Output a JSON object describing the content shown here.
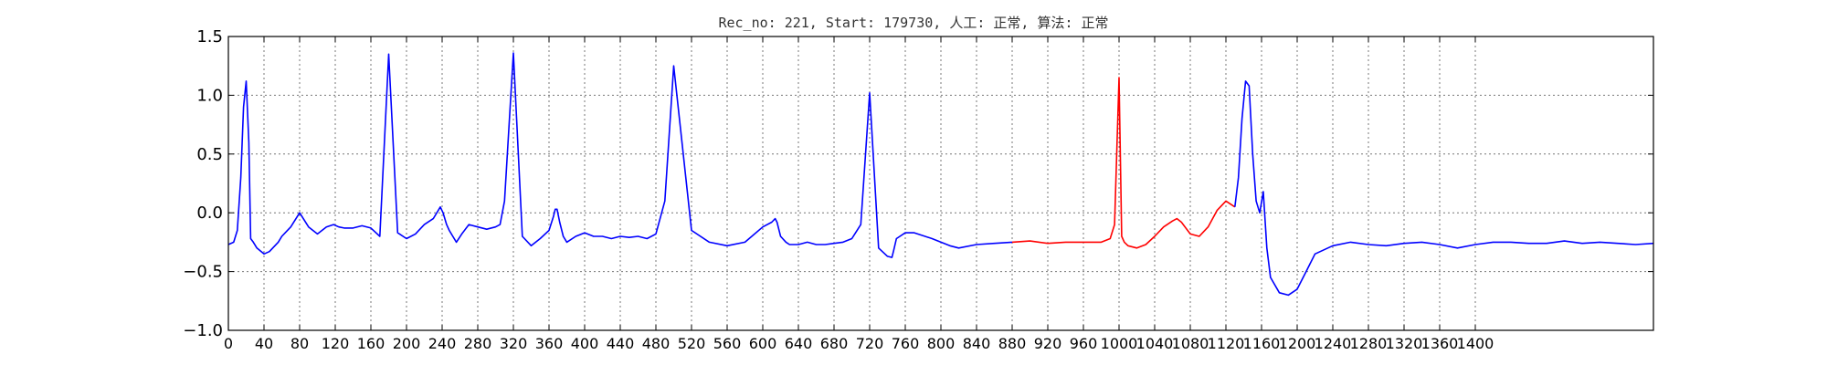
{
  "chart_data": {
    "type": "line",
    "title": "Rec_no: 221, Start: 179730, 人工: 正常, 算法: 正常",
    "xlabel": "",
    "ylabel": "",
    "xlim": [
      0,
      1600
    ],
    "ylim": [
      -1.0,
      1.5
    ],
    "grid": true,
    "x_ticks": [
      0,
      40,
      80,
      120,
      160,
      200,
      240,
      280,
      320,
      360,
      400,
      440,
      480,
      520,
      560,
      600,
      640,
      680,
      720,
      760,
      800,
      840,
      880,
      920,
      960,
      1000,
      1040,
      1080,
      1120,
      1160,
      1200,
      1240,
      1280,
      1320,
      1360,
      1400
    ],
    "x_tick_labels": [
      "0",
      "40",
      "80",
      "120",
      "160",
      "200",
      "240",
      "280",
      "320",
      "360",
      "400",
      "440",
      "480",
      "520",
      "560",
      "600",
      "640",
      "680",
      "720",
      "760",
      "800",
      "840",
      "880",
      "920",
      "960",
      "1000",
      "1040",
      "1080",
      "1120",
      "1160",
      "1200",
      "1240",
      "1280",
      "1320",
      "1360",
      "1400"
    ],
    "y_ticks": [
      -1.0,
      -0.5,
      0.0,
      0.5,
      1.0,
      1.5
    ],
    "y_tick_labels": [
      "−1.0",
      "−0.5",
      "0.0",
      "0.5",
      "1.0",
      "1.5"
    ],
    "series": [
      {
        "color": "#0000ff",
        "x": [
          0,
          6,
          10,
          14,
          17,
          20,
          23,
          25,
          28,
          32,
          40,
          46,
          56,
          60,
          70,
          80,
          90,
          100,
          110,
          118,
          124,
          130,
          140,
          150,
          160,
          170,
          180,
          190,
          200,
          210,
          220,
          230,
          238,
          241,
          245,
          248,
          252,
          256,
          262,
          270,
          280,
          290,
          300,
          305,
          310,
          320,
          330,
          340,
          350,
          360,
          365,
          367,
          369,
          372,
          376,
          380,
          390,
          400,
          410,
          420,
          430,
          440,
          450,
          460,
          470,
          480,
          490,
          500,
          520,
          540,
          560,
          580,
          600,
          610,
          614,
          616,
          620,
          626,
          630,
          640,
          650,
          660,
          670,
          680,
          690,
          700,
          710,
          720,
          730,
          740,
          745,
          747,
          750,
          754,
          760,
          770,
          790,
          810,
          820,
          840,
          860,
          880
        ],
        "y": [
          -0.27,
          -0.25,
          -0.15,
          0.3,
          0.9,
          1.12,
          0.6,
          -0.22,
          -0.25,
          -0.3,
          -0.35,
          -0.33,
          -0.25,
          -0.2,
          -0.12,
          0.0,
          -0.12,
          -0.18,
          -0.12,
          -0.1,
          -0.12,
          -0.13,
          -0.13,
          -0.11,
          -0.13,
          -0.2,
          1.35,
          -0.17,
          -0.22,
          -0.18,
          -0.1,
          -0.05,
          0.05,
          0.0,
          -0.1,
          -0.15,
          -0.2,
          -0.25,
          -0.18,
          -0.1,
          -0.12,
          -0.14,
          -0.12,
          -0.1,
          0.1,
          1.36,
          -0.2,
          -0.28,
          -0.22,
          -0.15,
          -0.03,
          0.03,
          0.03,
          -0.08,
          -0.2,
          -0.25,
          -0.2,
          -0.17,
          -0.2,
          -0.2,
          -0.22,
          -0.2,
          -0.21,
          -0.2,
          -0.22,
          -0.18,
          0.1,
          1.25,
          -0.15,
          -0.25,
          -0.28,
          -0.25,
          -0.12,
          -0.08,
          -0.05,
          -0.08,
          -0.2,
          -0.25,
          -0.27,
          -0.27,
          -0.25,
          -0.27,
          -0.27,
          -0.26,
          -0.25,
          -0.22,
          -0.1,
          1.02,
          -0.3,
          -0.37,
          -0.38,
          -0.32,
          -0.22,
          -0.2,
          -0.17,
          -0.17,
          -0.22,
          -0.28,
          -0.3,
          -0.27,
          -0.26,
          -0.25
        ]
      },
      {
        "color": "#ff0000",
        "x": [
          880,
          900,
          920,
          940,
          960,
          980,
          990,
          995,
          1000,
          1003,
          1006,
          1010,
          1020,
          1030,
          1040,
          1050,
          1060,
          1065,
          1070,
          1080,
          1090,
          1100,
          1110,
          1120,
          1130
        ],
        "y": [
          -0.25,
          -0.24,
          -0.26,
          -0.25,
          -0.25,
          -0.25,
          -0.22,
          -0.1,
          1.15,
          -0.2,
          -0.25,
          -0.28,
          -0.3,
          -0.27,
          -0.2,
          -0.12,
          -0.07,
          -0.05,
          -0.08,
          -0.18,
          -0.2,
          -0.12,
          0.02,
          0.1,
          0.05
        ]
      },
      {
        "color": "#0000ff",
        "x": [
          1130,
          1134,
          1138,
          1142,
          1146,
          1150,
          1154,
          1158,
          1162,
          1166,
          1170,
          1180,
          1190,
          1200,
          1210,
          1220,
          1240,
          1260,
          1280,
          1300,
          1320,
          1340,
          1360,
          1380,
          1400,
          1420,
          1440,
          1460,
          1480,
          1500,
          1520,
          1540,
          1560,
          1580,
          1600
        ],
        "y": [
          0.05,
          0.3,
          0.8,
          1.12,
          1.08,
          0.5,
          0.1,
          0.0,
          0.18,
          -0.3,
          -0.55,
          -0.68,
          -0.7,
          -0.65,
          -0.5,
          -0.35,
          -0.28,
          -0.25,
          -0.27,
          -0.28,
          -0.26,
          -0.25,
          -0.27,
          -0.3,
          -0.27,
          -0.25,
          -0.25,
          -0.26,
          -0.26,
          -0.24,
          -0.26,
          -0.25,
          -0.26,
          -0.27,
          -0.26
        ]
      }
    ],
    "visible_x_range_note": "",
    "legend": "none"
  }
}
